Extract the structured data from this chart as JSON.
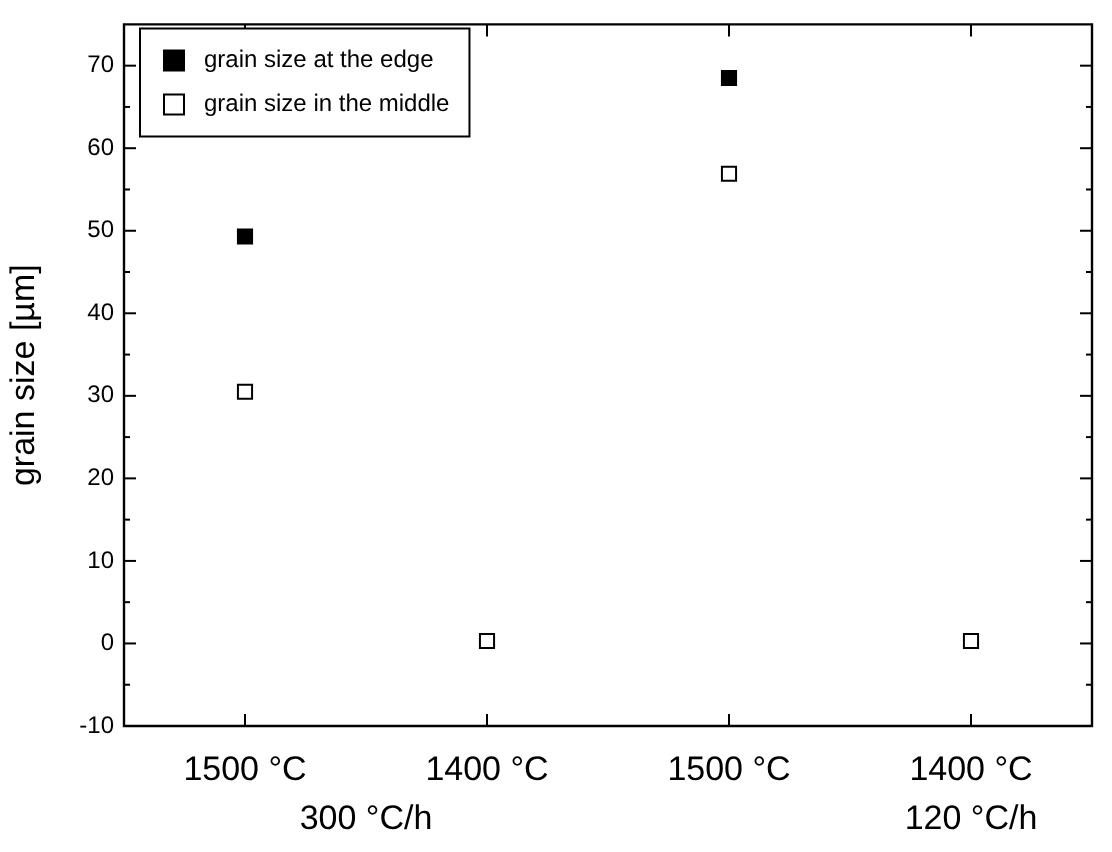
{
  "chart_data": {
    "type": "scatter",
    "ylabel": "grain size [µm]",
    "categories": [
      "1500 °C",
      "1400 °C",
      "1500 °C",
      "1400 °C"
    ],
    "series": [
      {
        "name": "grain size at the edge",
        "color": "#000000",
        "values": [
          49.3,
          null,
          68.5,
          null
        ]
      },
      {
        "name": "grain size in the middle",
        "color": "#000000",
        "values": [
          30.5,
          0.3,
          56.9,
          0.3
        ]
      }
    ],
    "ylim": [
      -10,
      75
    ],
    "yticks": [
      -10,
      0,
      10,
      20,
      30,
      40,
      50,
      60,
      70
    ],
    "annotations": [
      "300 °C/h",
      "120 °C/h"
    ],
    "marker": "square",
    "legend": "top left",
    "grid": false
  }
}
